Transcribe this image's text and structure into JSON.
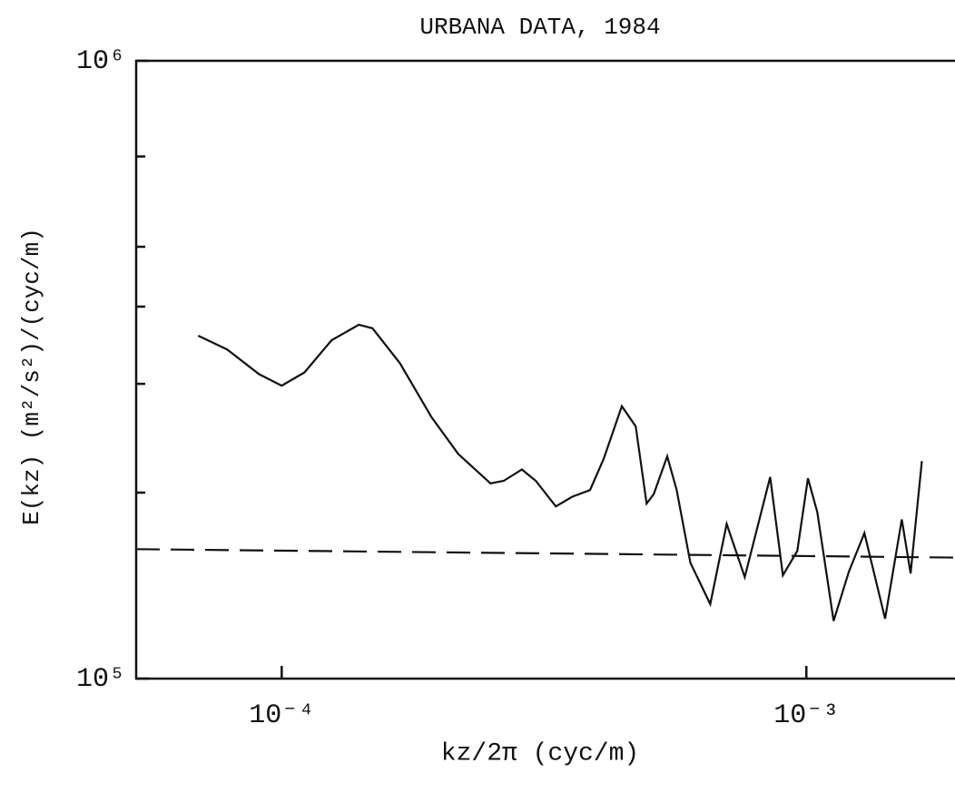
{
  "chart_data": {
    "type": "line",
    "title": "URBANA DATA, 1984",
    "xlabel": "kz/2π   (cyc/m)",
    "ylabel": "E(kz)  (m²/s²)/(cyc/m)",
    "log_x": true,
    "log_y": true,
    "xlim": [
      5.28e-05,
      0.00192
    ],
    "ylim": [
      100000,
      1000000
    ],
    "xticks": [
      {
        "value": 0.0001,
        "label": "10⁻⁴"
      },
      {
        "value": 0.001,
        "label": "10⁻³"
      }
    ],
    "yticks": [
      {
        "value": 100000,
        "label": "10⁵"
      },
      {
        "value": 1000000,
        "label": "10⁶"
      }
    ],
    "yminor_ticks": [
      200000,
      300000,
      400000,
      500000,
      700000
    ],
    "series": [
      {
        "color": "#111111",
        "dash": false,
        "x": [
          6.93e-05,
          7.87e-05,
          9.05e-05,
          0.0001,
          0.0001105,
          0.0001245,
          0.0001403,
          0.000149,
          0.000168,
          0.000193,
          0.000217,
          0.00025,
          0.000265,
          0.000287,
          0.000305,
          0.000333,
          0.000358,
          0.000387,
          0.000411,
          0.000445,
          0.000473,
          0.000496,
          0.000512,
          0.000543,
          0.000566,
          0.000601,
          0.000656,
          0.000705,
          0.000763,
          0.000853,
          0.000902,
          0.000961,
          0.001007,
          0.001049,
          0.001127,
          0.001205,
          0.00129,
          0.001413,
          0.00152,
          0.00158,
          0.00166
        ],
        "values": [
          359000,
          341000,
          311000,
          298000,
          313000,
          353000,
          374000,
          369000,
          324000,
          265000,
          231000,
          207000,
          209000,
          218000,
          209000,
          190000,
          197000,
          202000,
          227000,
          276000,
          256000,
          192000,
          199000,
          229000,
          202000,
          154000,
          132000,
          178000,
          146000,
          212000,
          147000,
          161000,
          211000,
          186000,
          124000,
          149000,
          172000,
          125000,
          181000,
          148000,
          225000
        ]
      },
      {
        "color": "#111111",
        "dash": true,
        "x": [
          5.28e-05,
          0.00192
        ],
        "values": [
          162000,
          157000
        ]
      }
    ]
  }
}
